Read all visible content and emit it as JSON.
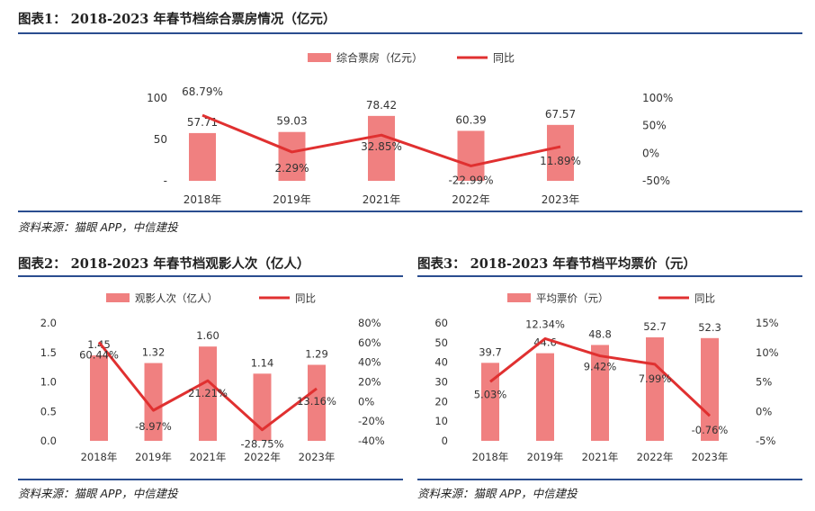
{
  "chart_data": [
    {
      "type": "bar",
      "title": "图表1：  2018-2023 年春节档综合票房情况（亿元）",
      "categories": [
        "2018年",
        "2019年",
        "2021年",
        "2022年",
        "2023年"
      ],
      "series": [
        {
          "name": "综合票房（亿元）",
          "type": "bar",
          "axis": "left",
          "values": [
            57.71,
            59.03,
            78.42,
            60.39,
            67.57
          ],
          "labels": [
            "57.71",
            "59.03",
            "78.42",
            "60.39",
            "67.57"
          ]
        },
        {
          "name": "同比",
          "type": "line",
          "axis": "right",
          "values": [
            68.79,
            2.29,
            32.85,
            -22.99,
            11.89
          ],
          "labels": [
            "68.79%",
            "2.29%",
            "32.85%",
            "-22.99%",
            "11.89%"
          ]
        }
      ],
      "ylim": [
        0,
        100
      ],
      "y_ticks": [
        {
          "v": 100,
          "t": "100"
        },
        {
          "v": 50,
          "t": "50"
        },
        {
          "v": 0,
          "t": "-"
        }
      ],
      "y2lim": [
        -50,
        100
      ],
      "y2_ticks": [
        {
          "v": 100,
          "t": "100%"
        },
        {
          "v": 50,
          "t": "50%"
        },
        {
          "v": 0,
          "t": "0%"
        },
        {
          "v": -50,
          "t": "-50%"
        }
      ],
      "source": "资料来源：猫眼 APP，中信建投",
      "colors": {
        "bar": "#f08080",
        "line": "#e03030"
      }
    },
    {
      "type": "bar",
      "title": "图表2：  2018-2023 年春节档观影人次（亿人）",
      "categories": [
        "2018年",
        "2019年",
        "2021年",
        "2022年",
        "2023年"
      ],
      "series": [
        {
          "name": "观影人次（亿人）",
          "type": "bar",
          "axis": "left",
          "values": [
            1.45,
            1.32,
            1.6,
            1.14,
            1.29
          ],
          "labels": [
            "1.45",
            "1.32",
            "1.60",
            "1.14",
            "1.29"
          ]
        },
        {
          "name": "同比",
          "type": "line",
          "axis": "right",
          "values": [
            60.44,
            -8.97,
            21.21,
            -28.75,
            13.16
          ],
          "labels": [
            "60.44%",
            "-8.97%",
            "21.21%",
            "-28.75%",
            "13.16%"
          ]
        }
      ],
      "ylim": [
        0,
        2
      ],
      "y_ticks": [
        {
          "v": 2,
          "t": "2.0"
        },
        {
          "v": 1.5,
          "t": "1.5"
        },
        {
          "v": 1,
          "t": "1.0"
        },
        {
          "v": 0.5,
          "t": "0.5"
        },
        {
          "v": 0,
          "t": "0.0"
        }
      ],
      "y2lim": [
        -40,
        80
      ],
      "y2_ticks": [
        {
          "v": 80,
          "t": "80%"
        },
        {
          "v": 60,
          "t": "60%"
        },
        {
          "v": 40,
          "t": "40%"
        },
        {
          "v": 20,
          "t": "20%"
        },
        {
          "v": 0,
          "t": "0%"
        },
        {
          "v": -20,
          "t": "-20%"
        },
        {
          "v": -40,
          "t": "-40%"
        }
      ],
      "source": "资料来源：猫眼 APP，中信建投",
      "colors": {
        "bar": "#f08080",
        "line": "#e03030"
      }
    },
    {
      "type": "bar",
      "title": "图表3：  2018-2023 年春节档平均票价（元）",
      "categories": [
        "2018年",
        "2019年",
        "2021年",
        "2022年",
        "2023年"
      ],
      "series": [
        {
          "name": "平均票价（元）",
          "type": "bar",
          "axis": "left",
          "values": [
            39.7,
            44.6,
            48.8,
            52.7,
            52.3
          ],
          "labels": [
            "39.7",
            "44.6",
            "48.8",
            "52.7",
            "52.3"
          ]
        },
        {
          "name": "同比",
          "type": "line",
          "axis": "right",
          "values": [
            5.03,
            12.34,
            9.42,
            7.99,
            -0.76
          ],
          "labels": [
            "5.03%",
            "12.34%",
            "9.42%",
            "7.99%",
            "-0.76%"
          ]
        }
      ],
      "ylim": [
        0,
        60
      ],
      "y_ticks": [
        {
          "v": 60,
          "t": "60"
        },
        {
          "v": 50,
          "t": "50"
        },
        {
          "v": 40,
          "t": "40"
        },
        {
          "v": 30,
          "t": "30"
        },
        {
          "v": 20,
          "t": "20"
        },
        {
          "v": 10,
          "t": "10"
        },
        {
          "v": 0,
          "t": "0"
        }
      ],
      "y2lim": [
        -5,
        15
      ],
      "y2_ticks": [
        {
          "v": 15,
          "t": "15%"
        },
        {
          "v": 10,
          "t": "10%"
        },
        {
          "v": 5,
          "t": "5%"
        },
        {
          "v": 0,
          "t": "0%"
        },
        {
          "v": -5,
          "t": "-5%"
        }
      ],
      "source": "资料来源：猫眼 APP，中信建投",
      "colors": {
        "bar": "#f08080",
        "line": "#e03030"
      }
    }
  ]
}
